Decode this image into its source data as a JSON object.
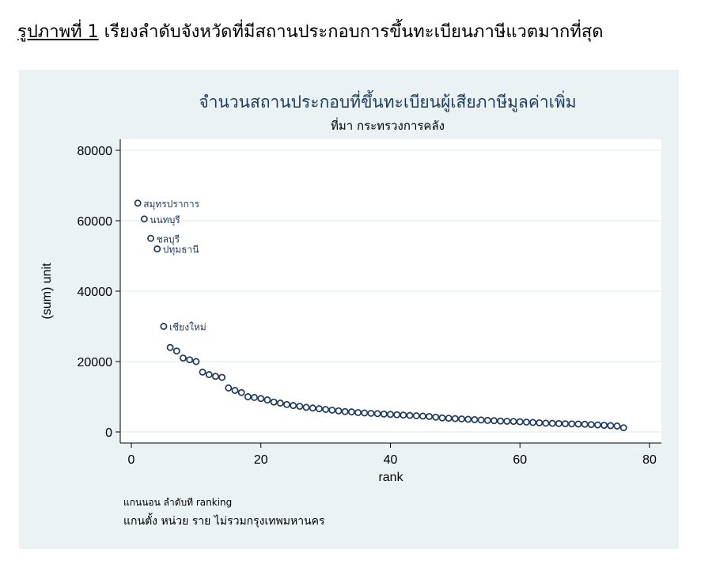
{
  "caption": {
    "label": "รูปภาพที่ 1",
    "text": "เรียงลำดับจังหวัดที่มีสถานประกอบการขึ้นทะเบียนภาษีแวตมากที่สุด"
  },
  "colors": {
    "panel_bg": "#eaf2f3",
    "plot_bg": "#ffffff",
    "marker": "#1e3a5f",
    "gridline": "#e3ecee"
  },
  "chart_data": {
    "type": "scatter",
    "title": "จำนวนสถานประกอบที่ขึ้นทะเบียนผู้เสียภาษีมูลค่าเพิ่ม",
    "subtitle": "ที่มา กระทรวงการคลัง",
    "xlabel": "rank",
    "ylabel": "(sum) unit",
    "xlim": [
      0,
      80
    ],
    "ylim": [
      0,
      80000
    ],
    "xticks": [
      0,
      20,
      40,
      60,
      80
    ],
    "yticks": [
      0,
      20000,
      40000,
      60000,
      80000
    ],
    "grid": true,
    "labels": [
      {
        "rank": 1,
        "text": "สมุทรปราการ"
      },
      {
        "rank": 2,
        "text": "นนทบุรี"
      },
      {
        "rank": 3,
        "text": "ชลบุรี"
      },
      {
        "rank": 4,
        "text": "ปทุมธานี"
      },
      {
        "rank": 5,
        "text": "เชียงใหม่"
      }
    ],
    "points": [
      [
        1,
        65000
      ],
      [
        2,
        60500
      ],
      [
        3,
        55000
      ],
      [
        4,
        52000
      ],
      [
        5,
        30000
      ],
      [
        6,
        24000
      ],
      [
        7,
        23000
      ],
      [
        8,
        21000
      ],
      [
        9,
        20500
      ],
      [
        10,
        20000
      ],
      [
        11,
        17000
      ],
      [
        12,
        16300
      ],
      [
        13,
        15800
      ],
      [
        14,
        15500
      ],
      [
        15,
        12500
      ],
      [
        16,
        11800
      ],
      [
        17,
        11200
      ],
      [
        18,
        10000
      ],
      [
        19,
        9800
      ],
      [
        20,
        9500
      ],
      [
        21,
        9100
      ],
      [
        22,
        8500
      ],
      [
        23,
        8200
      ],
      [
        24,
        7800
      ],
      [
        25,
        7500
      ],
      [
        26,
        7300
      ],
      [
        27,
        7000
      ],
      [
        28,
        6800
      ],
      [
        29,
        6600
      ],
      [
        30,
        6400
      ],
      [
        31,
        6200
      ],
      [
        32,
        6000
      ],
      [
        33,
        5800
      ],
      [
        34,
        5700
      ],
      [
        35,
        5500
      ],
      [
        36,
        5400
      ],
      [
        37,
        5300
      ],
      [
        38,
        5200
      ],
      [
        39,
        5100
      ],
      [
        40,
        5000
      ],
      [
        41,
        4900
      ],
      [
        42,
        4800
      ],
      [
        43,
        4700
      ],
      [
        44,
        4600
      ],
      [
        45,
        4500
      ],
      [
        46,
        4400
      ],
      [
        47,
        4200
      ],
      [
        48,
        4000
      ],
      [
        49,
        3900
      ],
      [
        50,
        3800
      ],
      [
        51,
        3700
      ],
      [
        52,
        3600
      ],
      [
        53,
        3500
      ],
      [
        54,
        3400
      ],
      [
        55,
        3300
      ],
      [
        56,
        3200
      ],
      [
        57,
        3100
      ],
      [
        58,
        3050
      ],
      [
        59,
        3000
      ],
      [
        60,
        2900
      ],
      [
        61,
        2800
      ],
      [
        62,
        2700
      ],
      [
        63,
        2600
      ],
      [
        64,
        2500
      ],
      [
        65,
        2450
      ],
      [
        66,
        2400
      ],
      [
        67,
        2350
      ],
      [
        68,
        2300
      ],
      [
        69,
        2250
      ],
      [
        70,
        2200
      ],
      [
        71,
        2100
      ],
      [
        72,
        2000
      ],
      [
        73,
        1900
      ],
      [
        74,
        1800
      ],
      [
        75,
        1700
      ],
      [
        76,
        1200
      ]
    ]
  },
  "notes": {
    "line1": "แกนนอน ลำดับที ranking",
    "line2": "แกนตั้ง หน่วย ราย  ไม่รวมกรุงเทพมหานคร"
  }
}
